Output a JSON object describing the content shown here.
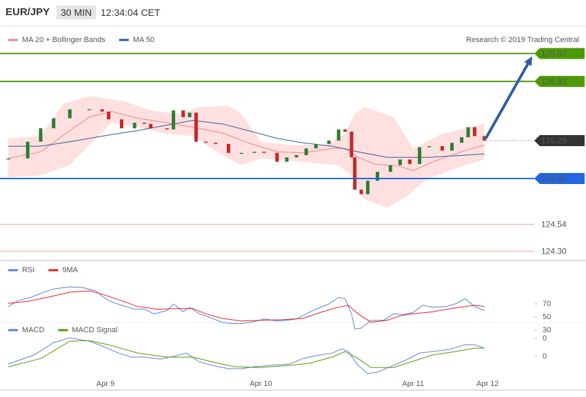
{
  "header": {
    "symbol": "EUR/JPY",
    "interval": "30 MIN",
    "time": "12:34:04 CET"
  },
  "credit": "Research © 2019 Trading Central",
  "chart_data": [
    {
      "type": "candlestick",
      "xlim": [
        0,
        162
      ],
      "ylim": [
        124.234,
        126.117
      ],
      "candles": {
        "up_color": "#2e7d32",
        "down_color": "#c62828",
        "x": [
          0,
          6,
          10,
          14,
          19,
          25,
          29,
          31,
          35,
          39,
          42,
          44,
          49,
          51,
          54,
          56,
          58,
          61,
          64,
          68,
          72,
          76,
          79,
          83,
          86,
          89,
          92,
          95,
          99,
          102,
          104,
          106,
          107,
          109,
          111,
          114,
          118,
          121,
          124,
          127,
          130,
          134,
          137,
          140,
          142,
          144,
          147
        ],
        "values": [
          125.13,
          125.28,
          125.4,
          125.49,
          125.57,
          125.57,
          125.55,
          125.48,
          125.4,
          125.45,
          125.44,
          125.4,
          125.39,
          125.56,
          125.5,
          125.54,
          125.28,
          125.27,
          125.26,
          125.18,
          125.18,
          125.19,
          125.18,
          125.1,
          125.14,
          125.16,
          125.22,
          125.26,
          125.29,
          125.39,
          125.37,
          125.14,
          124.85,
          124.81,
          124.93,
          125.01,
          125.07,
          125.12,
          125.08,
          125.23,
          125.24,
          125.2,
          125.27,
          125.32,
          125.41,
          125.33,
          125.29
        ]
      },
      "series": [
        {
          "name": "MA 20 + Bollinger Bands",
          "color": "#f08080",
          "band_color": "#fde0df",
          "x": [
            0,
            10,
            19,
            25,
            32,
            40,
            49,
            57,
            66,
            74,
            83,
            91,
            100,
            104,
            108,
            113,
            121,
            125,
            132,
            140,
            147
          ],
          "values": [
            125.13,
            125.19,
            125.38,
            125.5,
            125.55,
            125.49,
            125.45,
            125.41,
            125.36,
            125.27,
            125.19,
            125.18,
            125.22,
            125.22,
            125.14,
            125.08,
            125.06,
            125.02,
            125.11,
            125.19,
            125.25
          ],
          "upper": {
            "x": [
              0,
              10,
              17,
              25,
              36,
              44,
              53,
              59,
              68,
              72,
              78,
              87,
              98,
              104,
              107,
              110,
              119,
              125,
              134,
              147
            ],
            "values": [
              125.31,
              125.33,
              125.62,
              125.69,
              125.64,
              125.56,
              125.53,
              125.59,
              125.6,
              125.53,
              125.28,
              125.25,
              125.25,
              125.35,
              125.53,
              125.59,
              125.5,
              125.22,
              125.35,
              125.44
            ]
          },
          "lower": {
            "x": [
              0,
              10,
              19,
              25,
              32,
              40,
              49,
              57,
              66,
              72,
              78,
              91,
              102,
              106,
              110,
              117,
              123,
              129,
              138,
              147
            ],
            "values": [
              124.96,
              124.98,
              125.07,
              125.25,
              125.45,
              125.41,
              125.35,
              125.33,
              125.16,
              125.07,
              125.13,
              125.1,
              125.07,
              124.98,
              124.76,
              124.69,
              124.79,
              124.94,
              125.04,
              125.12
            ]
          }
        },
        {
          "name": "MA 50",
          "color": "#2c5a9a",
          "x": [
            0,
            10,
            19,
            29,
            40,
            51,
            57,
            66,
            74,
            83,
            91,
            100,
            108,
            117,
            130,
            147
          ],
          "values": [
            125.24,
            125.24,
            125.28,
            125.33,
            125.38,
            125.44,
            125.47,
            125.44,
            125.38,
            125.31,
            125.27,
            125.24,
            125.19,
            125.14,
            125.14,
            125.17
          ]
        }
      ],
      "levels": [
        {
          "value": 126.07,
          "color": "#4e9a06",
          "style": "box"
        },
        {
          "value": 125.82,
          "color": "#4e9a06",
          "style": "box"
        },
        {
          "value": 125.29,
          "color": "#333333",
          "style": "current"
        },
        {
          "value": 124.95,
          "color": "#2266e3",
          "style": "box"
        },
        {
          "value": 124.54,
          "color": "#f4a6a6",
          "style": "text"
        },
        {
          "value": 124.3,
          "label": "124.30",
          "color": "#f4a6a6",
          "style": "text"
        }
      ],
      "arrow_color": "#2f5f9e"
    },
    {
      "type": "line",
      "xlim": [
        0,
        162
      ],
      "ylim": [
        18.4,
        113.2
      ],
      "yticks": [
        30,
        50,
        70
      ],
      "series": [
        {
          "name": "RSI",
          "color": "#5b7fd6",
          "x": [
            0,
            3,
            7,
            11,
            14,
            19,
            23,
            27,
            29,
            31,
            35,
            39,
            42,
            45,
            49,
            51,
            54,
            56,
            59,
            62,
            66,
            69,
            72,
            76,
            79,
            83,
            86,
            89,
            92,
            95,
            99,
            102,
            104,
            106,
            107,
            109,
            112,
            116,
            119,
            122,
            125,
            128,
            131,
            135,
            138,
            141,
            144,
            147
          ],
          "values": [
            66,
            75,
            80,
            88,
            93,
            96,
            95,
            90,
            82,
            75,
            68,
            62,
            62,
            55,
            60,
            70,
            58,
            65,
            55,
            50,
            42,
            40,
            40,
            43,
            47,
            44,
            45,
            47,
            55,
            62,
            70,
            80,
            78,
            55,
            32,
            33,
            45,
            45,
            55,
            54,
            57,
            68,
            65,
            66,
            70,
            78,
            66,
            60
          ]
        },
        {
          "name": "9MA",
          "color": "#e02020",
          "x": [
            0,
            6,
            12,
            19,
            25,
            29,
            35,
            40,
            46,
            53,
            57,
            61,
            66,
            72,
            78,
            85,
            91,
            97,
            102,
            105,
            108,
            112,
            117,
            121,
            125,
            131,
            138,
            144,
            147
          ],
          "values": [
            71,
            74,
            80,
            88,
            90,
            85,
            75,
            66,
            62,
            63,
            63,
            55,
            48,
            44,
            45,
            46,
            48,
            58,
            65,
            68,
            55,
            42,
            45,
            52,
            55,
            58,
            64,
            68,
            66
          ]
        }
      ]
    },
    {
      "type": "line",
      "xlim": [
        0,
        162
      ],
      "ylim": [
        -0.146,
        0.112
      ],
      "yticks": [
        {
          "value": 0.1,
          "label": "0"
        },
        {
          "value": 0,
          "label": "0"
        }
      ],
      "xticks": [
        {
          "value": 30,
          "label": "Apr 9"
        },
        {
          "value": 78,
          "label": "Apr 10"
        },
        {
          "value": 125,
          "label": "Apr 11"
        },
        {
          "value": 148,
          "label": "Apr 12"
        }
      ],
      "series": [
        {
          "name": "MACD",
          "color": "#5b7fd6",
          "x": [
            0,
            8,
            14,
            19,
            25,
            29,
            34,
            38,
            42,
            47,
            51,
            55,
            59,
            63,
            68,
            72,
            76,
            81,
            87,
            91,
            95,
            100,
            103,
            105,
            108,
            111,
            114,
            119,
            123,
            127,
            131,
            136,
            141,
            144,
            147
          ],
          "values": [
            -0.042,
            0.008,
            0.077,
            0.104,
            0.085,
            0.058,
            0.019,
            -0.004,
            -0.004,
            -0.015,
            0,
            0.019,
            -0.031,
            -0.05,
            -0.069,
            -0.069,
            -0.058,
            -0.05,
            -0.042,
            -0.012,
            0.004,
            0.019,
            0.042,
            0.027,
            -0.05,
            -0.096,
            -0.088,
            -0.05,
            -0.019,
            0.019,
            0.027,
            0.038,
            0.065,
            0.065,
            0.046
          ]
        },
        {
          "name": "MACD Signal",
          "color": "#4e9a06",
          "x": [
            0,
            10,
            19,
            25,
            31,
            40,
            49,
            57,
            63,
            70,
            78,
            87,
            93,
            100,
            104,
            108,
            112,
            119,
            125,
            131,
            138,
            144,
            147
          ],
          "values": [
            -0.058,
            -0.012,
            0.085,
            0.088,
            0.065,
            0.019,
            -0.004,
            -0.004,
            -0.031,
            -0.058,
            -0.062,
            -0.05,
            -0.038,
            -0.004,
            0.027,
            -0.012,
            -0.062,
            -0.062,
            -0.027,
            0.008,
            0.027,
            0.046,
            0.046
          ]
        }
      ]
    }
  ]
}
